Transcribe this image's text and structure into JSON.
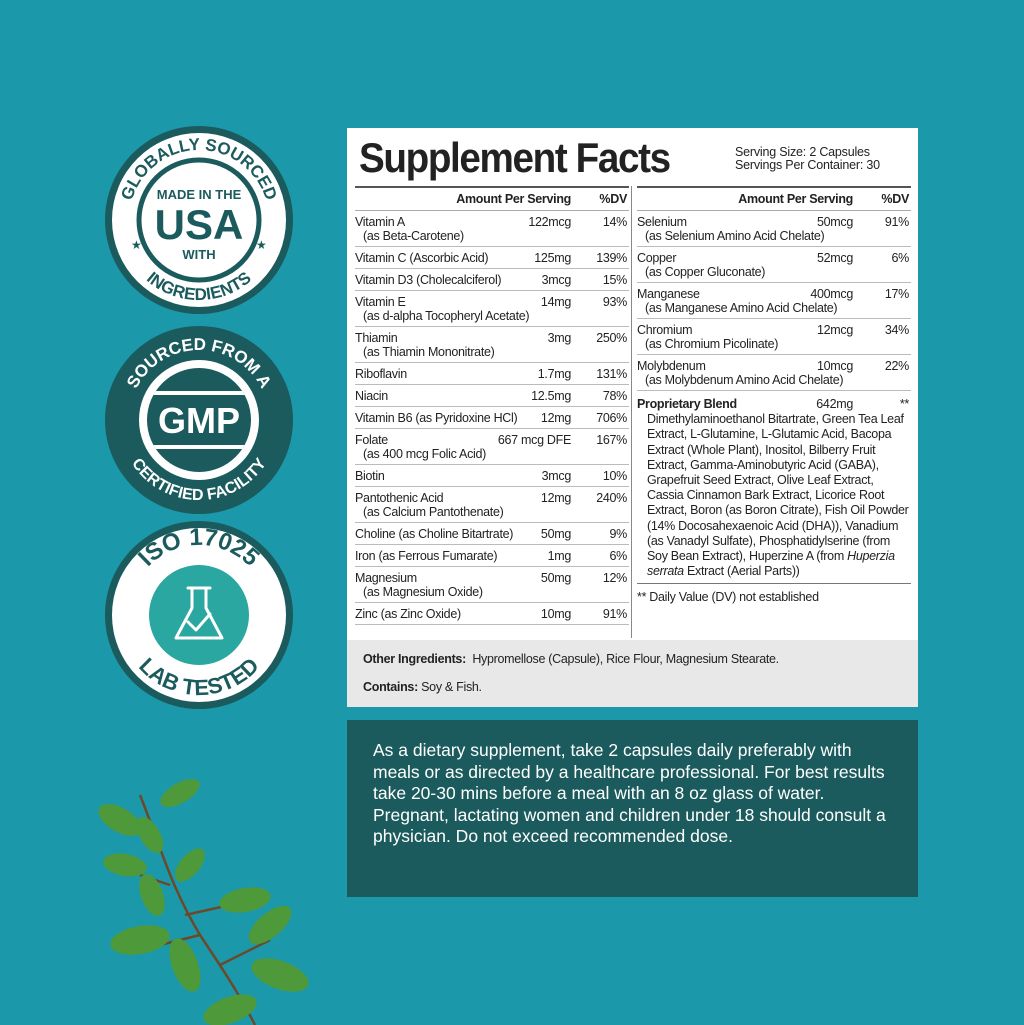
{
  "colors": {
    "background": "#1b98aa",
    "badge_dark": "#1b5b5d",
    "directions_bg": "#1c5b5d",
    "leaf": "#4e9a3a"
  },
  "badges": [
    {
      "top": "GLOBALLY SOURCED",
      "bottom": "INGREDIENTS",
      "line1": "MADE IN THE",
      "line2": "USA",
      "line3": "WITH"
    },
    {
      "top": "SOURCED FROM A",
      "bottom": "CERTIFIED FACILITY",
      "center": "GMP"
    },
    {
      "top": "ISO 17025",
      "bottom": "LAB TESTED",
      "icon": "flask-check-icon"
    }
  ],
  "label": {
    "title": "Supplement Facts",
    "serving_size": "Serving Size: 2 Capsules",
    "servings_per_container": "Servings Per Container: 30",
    "header_amount": "Amount Per Serving",
    "header_dv": "%DV",
    "left_rows": [
      {
        "name": "Vitamin A",
        "sub": "(as Beta-Carotene)",
        "amount": "122mcg",
        "dv": "14%"
      },
      {
        "name": "Vitamin C (Ascorbic Acid)",
        "amount": "125mg",
        "dv": "139%"
      },
      {
        "name": "Vitamin D3 (Cholecalciferol)",
        "amount": "3mcg",
        "dv": "15%"
      },
      {
        "name": "Vitamin E",
        "sub": "(as d-alpha Tocopheryl Acetate)",
        "amount": "14mg",
        "dv": "93%"
      },
      {
        "name": "Thiamin",
        "sub": "(as Thiamin Mononitrate)",
        "amount": "3mg",
        "dv": "250%"
      },
      {
        "name": "Riboflavin",
        "amount": "1.7mg",
        "dv": "131%"
      },
      {
        "name": "Niacin",
        "amount": "12.5mg",
        "dv": "78%"
      },
      {
        "name": "Vitamin B6 (as Pyridoxine HCl)",
        "amount": "12mg",
        "dv": "706%"
      },
      {
        "name": "Folate",
        "sub": "(as 400 mcg Folic Acid)",
        "amount": "667 mcg DFE",
        "dv": "167%"
      },
      {
        "name": "Biotin",
        "amount": "3mcg",
        "dv": "10%"
      },
      {
        "name": "Pantothenic Acid",
        "sub": "(as Calcium Pantothenate)",
        "amount": "12mg",
        "dv": "240%"
      },
      {
        "name": "Choline (as Choline Bitartrate)",
        "amount": "50mg",
        "dv": "9%"
      },
      {
        "name": "Iron (as Ferrous Fumarate)",
        "amount": "1mg",
        "dv": "6%"
      },
      {
        "name": "Magnesium",
        "sub": "(as Magnesium Oxide)",
        "amount": "50mg",
        "dv": "12%"
      },
      {
        "name": "Zinc (as Zinc Oxide)",
        "amount": "10mg",
        "dv": "91%"
      }
    ],
    "right_rows": [
      {
        "name": "Selenium",
        "sub": "(as Selenium Amino Acid Chelate)",
        "amount": "50mcg",
        "dv": "91%"
      },
      {
        "name": "Copper",
        "sub": "(as Copper Gluconate)",
        "amount": "52mcg",
        "dv": "6%"
      },
      {
        "name": "Manganese",
        "sub": "(as Manganese Amino Acid Chelate)",
        "amount": "400mcg",
        "dv": "17%"
      },
      {
        "name": "Chromium",
        "sub": "(as Chromium Picolinate)",
        "amount": "12mcg",
        "dv": "34%"
      },
      {
        "name": "Molybdenum",
        "sub": "(as Molybdenum Amino Acid Chelate)",
        "amount": "10mcg",
        "dv": "22%"
      }
    ],
    "blend": {
      "name": "Proprietary Blend",
      "amount": "642mg",
      "dv": "**",
      "ingredients": "Dimethylaminoethanol Bitartrate, Green Tea Leaf Extract, L-Glutamine, L-Glutamic Acid, Bacopa Extract (Whole Plant), Inositol, Bilberry Fruit Extract, Gamma-Aminobutyric Acid (GABA), Grapefruit Seed Extract, Olive Leaf Extract, Cassia Cinnamon Bark Extract, Licorice Root Extract, Boron (as Boron Citrate), Fish Oil Powder (14% Docosahexaenoic Acid (DHA)), Vanadium (as Vanadyl Sulfate), Phosphatidylserine (from Soy Bean Extract), Huperzine A (from",
      "ingredients_italic": "Huperzia serrata",
      "ingredients_end": " Extract (Aerial Parts))"
    },
    "dv_note": "** Daily Value (DV) not established",
    "other_label": "Other Ingredients:",
    "other_value": "Hypromellose (Capsule), Rice Flour, Magnesium Stearate.",
    "contains_label": "Contains:",
    "contains_value": "Soy & Fish."
  },
  "directions": "As a dietary supplement, take 2 capsules daily preferably with meals or as directed by a healthcare professional. For best results take 20-30 mins before a meal with an 8 oz glass of water. Pregnant, lactating women and children under 18 should consult a physician. Do not exceed recommended dose."
}
